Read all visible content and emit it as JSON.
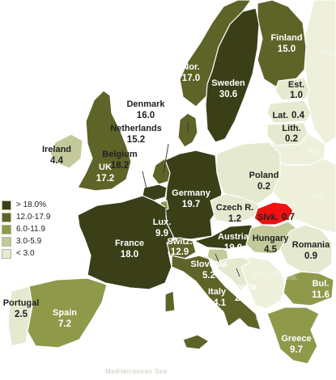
{
  "colors": {
    "c1": "#3b3f17",
    "c2": "#5e6328",
    "c3": "#8f994a",
    "c4": "#c3c99a",
    "c5": "#e5e9cf",
    "highlight": "#ee1111",
    "nodata": "#eef0dc",
    "sea": "#ffffff"
  },
  "legend": [
    {
      "label": "> 18.0%",
      "color_key": "c1"
    },
    {
      "label": "12.0-17.9",
      "color_key": "c2"
    },
    {
      "label": "6.0-11.9",
      "color_key": "c3"
    },
    {
      "label": "3.0-5.9",
      "color_key": "c4"
    },
    {
      "label": "< 3.0",
      "color_key": "c5"
    }
  ],
  "countries": [
    {
      "id": "finland",
      "name": "Finland",
      "value": "15.0",
      "class_key": "c2"
    },
    {
      "id": "norway",
      "name": "Nor.",
      "value": "17.0",
      "class_key": "c2"
    },
    {
      "id": "sweden",
      "name": "Sweden",
      "value": "30.6",
      "class_key": "c1"
    },
    {
      "id": "estonia",
      "name": "Est.",
      "value": "1.0",
      "class_key": "c5"
    },
    {
      "id": "latvia",
      "name": "Lat.",
      "value": "0.4",
      "class_key": "c5"
    },
    {
      "id": "lithuania",
      "name": "Lith.",
      "value": "0.2",
      "class_key": "c5"
    },
    {
      "id": "denmark",
      "name": "Denmark",
      "value": "16.0",
      "class_key": "c2"
    },
    {
      "id": "netherlands",
      "name": "Netherlands",
      "value": "15.2",
      "class_key": "c2"
    },
    {
      "id": "belgium",
      "name": "Belgium",
      "value": "18.2",
      "class_key": "c1"
    },
    {
      "id": "ireland",
      "name": "Ireland",
      "value": "4.4",
      "class_key": "c4"
    },
    {
      "id": "uk",
      "name": "UK",
      "value": "17.2",
      "class_key": "c2"
    },
    {
      "id": "poland",
      "name": "Poland",
      "value": "0.2",
      "class_key": "c5"
    },
    {
      "id": "germany",
      "name": "Germany",
      "value": "19.7",
      "class_key": "c1"
    },
    {
      "id": "czech",
      "name": "Czech R.",
      "value": "1.2",
      "class_key": "c5"
    },
    {
      "id": "slovakia",
      "name": "Slvk.",
      "value": "0.7",
      "class_key": "highlight"
    },
    {
      "id": "luxembourg",
      "name": "Lux.",
      "value": "9.9",
      "class_key": "c3"
    },
    {
      "id": "france",
      "name": "France",
      "value": "18.0",
      "class_key": "c1"
    },
    {
      "id": "austria",
      "name": "Austria",
      "value": "19.9",
      "class_key": "c1"
    },
    {
      "id": "hungary",
      "name": "Hungary",
      "value": "4.5",
      "class_key": "c4"
    },
    {
      "id": "switzerland",
      "name": "Switz.",
      "value": "12.9",
      "class_key": "c2"
    },
    {
      "id": "romania",
      "name": "Romania",
      "value": "0.9",
      "class_key": "c5"
    },
    {
      "id": "slovenia",
      "name": "Slovenia",
      "value": "5.2",
      "class_key": "c4"
    },
    {
      "id": "croatia",
      "name": "Croatia",
      "value": "2.1",
      "class_key": "c5"
    },
    {
      "id": "portugal",
      "name": "Portugal",
      "value": "2.5",
      "class_key": "c5"
    },
    {
      "id": "spain",
      "name": "Spain",
      "value": "7.2",
      "class_key": "c3"
    },
    {
      "id": "italy",
      "name": "Italy",
      "value": "14.1",
      "class_key": "c2"
    },
    {
      "id": "bulgaria",
      "name": "Bul.",
      "value": "11.6",
      "class_key": "c3"
    },
    {
      "id": "greece",
      "name": "Greece",
      "value": "9.7",
      "class_key": "c3"
    }
  ],
  "other_labels": {
    "russia": "Rus.",
    "belarus": "Bel.",
    "ukraine": "Ukr.",
    "bosnia": "Bos./ Herz.",
    "serbia": "Serb.",
    "macedonia": "Mac.",
    "albania": "Alb.",
    "sea": "Mediterranean Sea"
  }
}
